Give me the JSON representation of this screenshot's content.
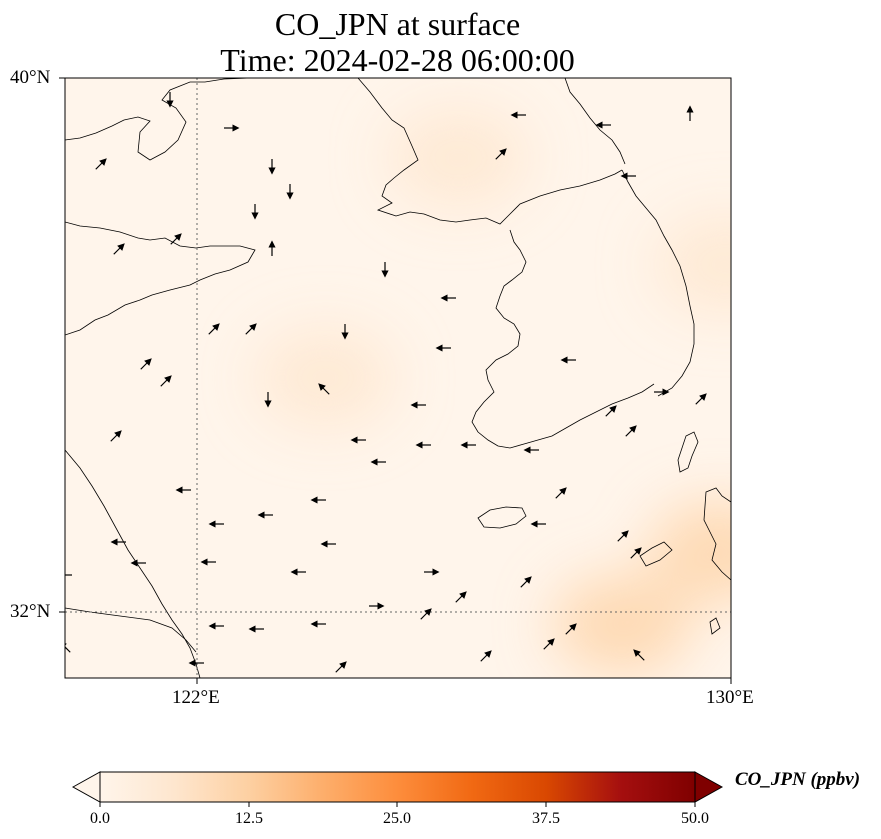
{
  "title": {
    "line1": "CO_JPN at surface",
    "line2": "Time: 2024-02-28 06:00:00"
  },
  "map": {
    "lon_range": [
      119,
      130
    ],
    "lat_range": [
      31,
      40
    ],
    "lat_ticks": [
      {
        "value": 40,
        "label": "40°N"
      },
      {
        "value": 32,
        "label": "32°N"
      }
    ],
    "lon_ticks": [
      {
        "value": 122,
        "label": "122°E"
      },
      {
        "value": 130,
        "label": "130°E"
      }
    ],
    "gridlines": {
      "lat": [
        32
      ],
      "lon": [
        122
      ],
      "style": "dotted"
    },
    "field": "CO_JPN",
    "field_range_ppbv": [
      0,
      50
    ],
    "hotspots": [
      {
        "lon": 125.5,
        "lat": 38.8,
        "value": 4
      },
      {
        "lon": 123.3,
        "lat": 35.5,
        "value": 4
      },
      {
        "lon": 128.2,
        "lat": 31.8,
        "value": 9
      },
      {
        "lon": 129.8,
        "lat": 32.9,
        "value": 8
      },
      {
        "lon": 129.9,
        "lat": 37.2,
        "value": 4
      }
    ]
  },
  "colorbar": {
    "label": "CO_JPN (ppbv)",
    "ticks": [
      "0.0",
      "12.5",
      "25.0",
      "37.5",
      "50.0"
    ],
    "colors": [
      "#fff5eb",
      "#fee6ce",
      "#fdd0a2",
      "#fdae6b",
      "#fd8d3c",
      "#f16913",
      "#d94801",
      "#a50f0f",
      "#7f0000"
    ],
    "extend": "both"
  }
}
